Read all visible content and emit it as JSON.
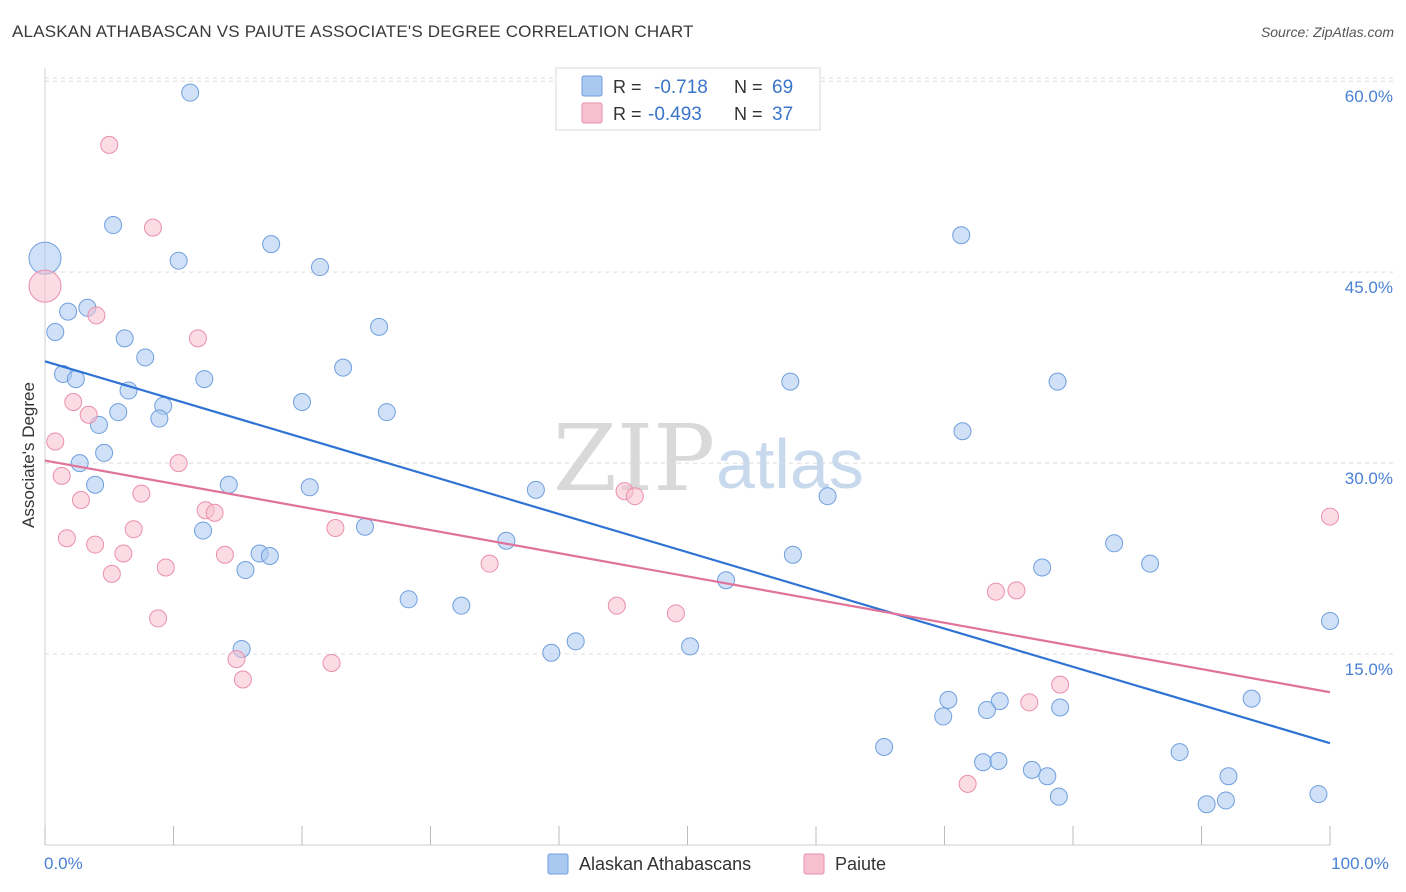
{
  "title": "ALASKAN ATHABASCAN VS PAIUTE ASSOCIATE'S DEGREE CORRELATION CHART",
  "source": "Source: ZipAtlas.com",
  "watermark": {
    "zip": "ZIP",
    "atlas": "atlas"
  },
  "colors": {
    "blue_fill": "#a9c8f0",
    "blue_stroke": "#6f9fde",
    "blue_line": "#2f73d4",
    "pink_fill": "#f7c0d0",
    "pink_stroke": "#ea8fac",
    "pink_line": "#e0739a",
    "grid": "#dcdcdc",
    "axis_text": "#4a80d4"
  },
  "legend": {
    "rows": [
      {
        "r_label": "R =",
        "r_value": "-0.718",
        "n_label": "N =",
        "n_value": "69",
        "series": "blue"
      },
      {
        "r_label": "R =",
        "r_value": "-0.493",
        "n_label": "N =",
        "n_value": "37",
        "series": "pink"
      }
    ]
  },
  "bottom_legend": [
    "Alaskan Athabascans",
    "Paiute"
  ],
  "chart_data": {
    "type": "scatter",
    "title": "ALASKAN ATHABASCAN VS PAIUTE ASSOCIATE'S DEGREE CORRELATION CHART",
    "xlabel": "",
    "ylabel": "Associate's Degree",
    "xlim": [
      0,
      100
    ],
    "ylim": [
      0,
      62
    ],
    "x_tick_labels": [
      {
        "value": 0,
        "label": "0.0%"
      },
      {
        "value": 100,
        "label": "100.0%"
      }
    ],
    "y_tick_labels": [
      {
        "value": 15,
        "label": "15.0%"
      },
      {
        "value": 30,
        "label": "30.0%"
      },
      {
        "value": 45,
        "label": "45.0%"
      },
      {
        "value": 60,
        "label": "60.0%"
      }
    ],
    "x_minor_ticks": [
      0,
      10,
      20,
      30,
      40,
      50,
      60,
      70,
      80,
      90,
      100
    ],
    "series": [
      {
        "name": "Alaskan Athabascans",
        "color": "blue",
        "r": -0.718,
        "n": 69,
        "trend": {
          "x": [
            0,
            100
          ],
          "y": [
            38.0,
            8.0
          ]
        },
        "points": [
          [
            0.0,
            46.1,
            "large"
          ],
          [
            11.3,
            59.1
          ],
          [
            5.3,
            48.7
          ],
          [
            10.4,
            45.9
          ],
          [
            17.6,
            47.2
          ],
          [
            21.4,
            45.4
          ],
          [
            1.8,
            41.9
          ],
          [
            3.3,
            42.2
          ],
          [
            0.8,
            40.3
          ],
          [
            6.2,
            39.8
          ],
          [
            7.8,
            38.3
          ],
          [
            26.0,
            40.7
          ],
          [
            23.2,
            37.5
          ],
          [
            1.4,
            37.0
          ],
          [
            2.4,
            36.6
          ],
          [
            12.4,
            36.6
          ],
          [
            6.5,
            35.7
          ],
          [
            9.2,
            34.5
          ],
          [
            20.0,
            34.8
          ],
          [
            5.7,
            34.0
          ],
          [
            8.9,
            33.5
          ],
          [
            26.6,
            34.0
          ],
          [
            4.2,
            33.0
          ],
          [
            2.7,
            30.0
          ],
          [
            4.6,
            30.8
          ],
          [
            3.9,
            28.3
          ],
          [
            14.3,
            28.3
          ],
          [
            20.6,
            28.1
          ],
          [
            38.2,
            27.9
          ],
          [
            12.3,
            24.7
          ],
          [
            24.9,
            25.0
          ],
          [
            35.9,
            23.9
          ],
          [
            16.7,
            22.9
          ],
          [
            17.5,
            22.7
          ],
          [
            15.6,
            21.6
          ],
          [
            28.3,
            19.3
          ],
          [
            32.4,
            18.8
          ],
          [
            15.3,
            15.4
          ],
          [
            39.4,
            15.1
          ],
          [
            41.3,
            16.0
          ],
          [
            50.2,
            15.6
          ],
          [
            53.0,
            20.8
          ],
          [
            58.2,
            22.8
          ],
          [
            60.9,
            27.4
          ],
          [
            58.0,
            36.4
          ],
          [
            71.4,
            32.5
          ],
          [
            71.3,
            47.9
          ],
          [
            78.8,
            36.4
          ],
          [
            77.6,
            21.8
          ],
          [
            83.2,
            23.7
          ],
          [
            86.0,
            22.1
          ],
          [
            100.0,
            17.6
          ],
          [
            93.9,
            11.5
          ],
          [
            70.3,
            11.4
          ],
          [
            69.9,
            10.1
          ],
          [
            74.3,
            11.3
          ],
          [
            73.3,
            10.6
          ],
          [
            79.0,
            10.8
          ],
          [
            65.3,
            7.7
          ],
          [
            73.0,
            6.5
          ],
          [
            74.2,
            6.6
          ],
          [
            76.8,
            5.9
          ],
          [
            78.0,
            5.4
          ],
          [
            78.9,
            3.8
          ],
          [
            88.3,
            7.3
          ],
          [
            92.1,
            5.4
          ],
          [
            90.4,
            3.2
          ],
          [
            91.9,
            3.5
          ],
          [
            99.1,
            4.0
          ]
        ]
      },
      {
        "name": "Paiute",
        "color": "pink",
        "r": -0.493,
        "n": 37,
        "trend": {
          "x": [
            0,
            100
          ],
          "y": [
            30.2,
            12.0
          ]
        },
        "points": [
          [
            0.0,
            43.9,
            "large"
          ],
          [
            5.0,
            55.0
          ],
          [
            8.4,
            48.5
          ],
          [
            4.0,
            41.6
          ],
          [
            11.9,
            39.8
          ],
          [
            2.2,
            34.8
          ],
          [
            3.4,
            33.8
          ],
          [
            0.8,
            31.7
          ],
          [
            1.3,
            29.0
          ],
          [
            10.4,
            30.0
          ],
          [
            7.5,
            27.6
          ],
          [
            2.8,
            27.1
          ],
          [
            12.5,
            26.3
          ],
          [
            13.2,
            26.1
          ],
          [
            6.9,
            24.8
          ],
          [
            1.7,
            24.1
          ],
          [
            3.9,
            23.6
          ],
          [
            6.1,
            22.9
          ],
          [
            14.0,
            22.8
          ],
          [
            9.4,
            21.8
          ],
          [
            5.2,
            21.3
          ],
          [
            22.6,
            24.9
          ],
          [
            34.6,
            22.1
          ],
          [
            45.1,
            27.8
          ],
          [
            45.9,
            27.4
          ],
          [
            44.5,
            18.8
          ],
          [
            49.1,
            18.2
          ],
          [
            8.8,
            17.8
          ],
          [
            14.9,
            14.6
          ],
          [
            15.4,
            13.0
          ],
          [
            22.3,
            14.3
          ],
          [
            74.0,
            19.9
          ],
          [
            75.6,
            20.0
          ],
          [
            100.0,
            25.8
          ],
          [
            79.0,
            12.6
          ],
          [
            76.6,
            11.2
          ],
          [
            71.8,
            4.8
          ]
        ]
      }
    ]
  }
}
